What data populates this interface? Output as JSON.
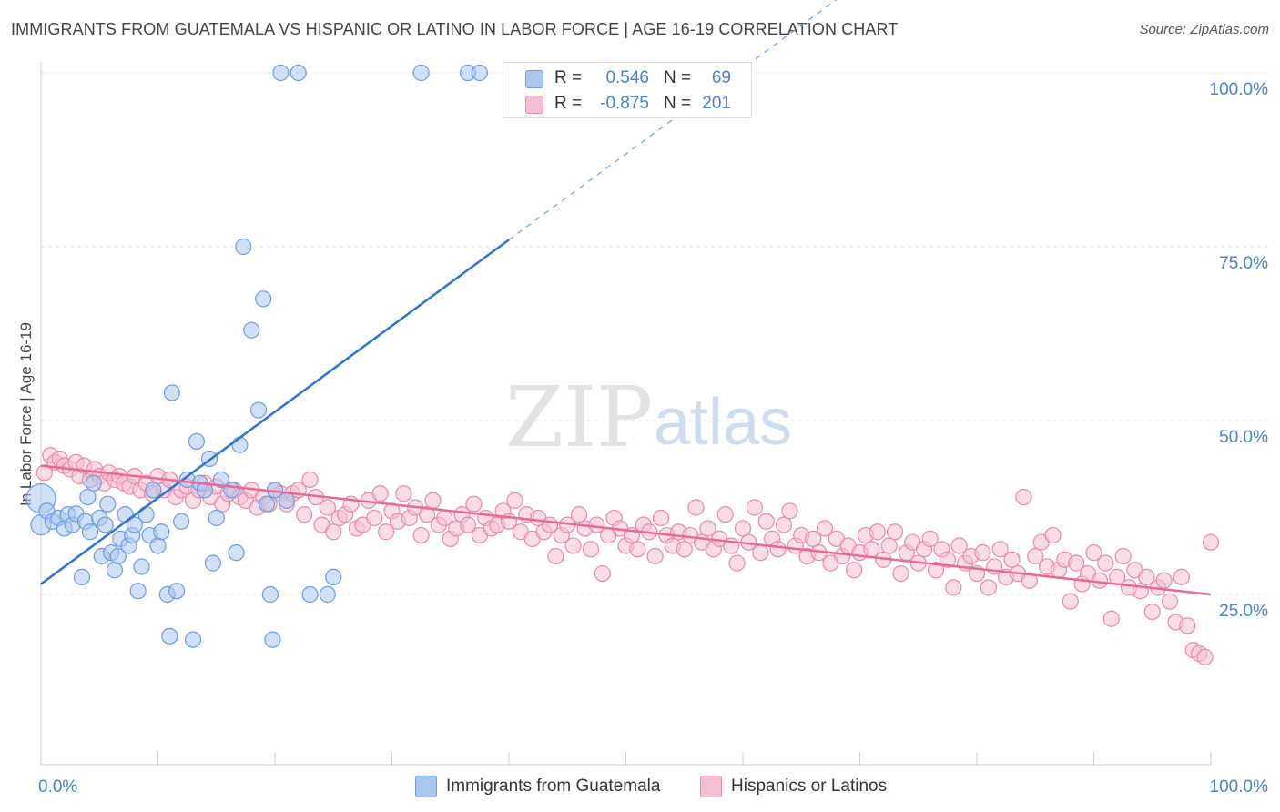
{
  "title": "IMMIGRANTS FROM GUATEMALA VS HISPANIC OR LATINO IN LABOR FORCE | AGE 16-19 CORRELATION CHART",
  "source": "Source: ZipAtlas.com",
  "watermark": {
    "zip": "ZIP",
    "atlas": "atlas"
  },
  "stats": [
    {
      "r_label": "R =",
      "r_value": "0.546",
      "n_label": "N =",
      "n_value": "69",
      "color": "#a9c6ee",
      "border": "#6b9be0"
    },
    {
      "r_label": "R =",
      "r_value": "-0.875",
      "n_label": "N =",
      "n_value": "201",
      "color": "#f6bfd1",
      "border": "#e889a9"
    }
  ],
  "legend": [
    {
      "label": "Immigrants from Guatemala",
      "color": "#a9c6ee",
      "border": "#6b9be0"
    },
    {
      "label": "Hispanics or Latinos",
      "color": "#f6bfd1",
      "border": "#e889a9"
    }
  ],
  "chart_data": {
    "type": "scatter",
    "title": "IMMIGRANTS FROM GUATEMALA VS HISPANIC OR LATINO IN LABOR FORCE | AGE 16-19 CORRELATION CHART",
    "xlabel": "",
    "ylabel": "In Labor Force | Age 16-19",
    "xlim": [
      0,
      100
    ],
    "ylim": [
      0,
      105
    ],
    "x_tick_labels": [
      "0.0%",
      "100.0%"
    ],
    "y_ticks": [
      25,
      50,
      75,
      100
    ],
    "y_tick_labels": [
      "25.0%",
      "50.0%",
      "75.0%",
      "100.0%"
    ],
    "grid": true,
    "legend_position": "bottom",
    "series": [
      {
        "name": "Immigrants from Guatemala",
        "color": "#6b9be0",
        "fill": "#a9c6ee",
        "trend": {
          "x": [
            0,
            40
          ],
          "y": [
            26.5,
            76
          ],
          "dashed_to": [
            70,
            113
          ]
        },
        "points": [
          [
            0,
            38.8
          ],
          [
            0,
            35.0
          ],
          [
            0.5,
            37.0
          ],
          [
            1.0,
            35.5
          ],
          [
            1.5,
            36.0
          ],
          [
            2.0,
            34.5
          ],
          [
            2.3,
            36.5
          ],
          [
            2.7,
            35.0
          ],
          [
            3.0,
            36.6
          ],
          [
            3.5,
            27.5
          ],
          [
            3.8,
            35.5
          ],
          [
            4.0,
            39.0
          ],
          [
            4.2,
            34.0
          ],
          [
            4.5,
            41.0
          ],
          [
            5.0,
            36.0
          ],
          [
            5.2,
            30.5
          ],
          [
            5.5,
            35.0
          ],
          [
            5.7,
            38.0
          ],
          [
            6.0,
            31.0
          ],
          [
            6.3,
            28.5
          ],
          [
            6.6,
            30.5
          ],
          [
            6.8,
            33.0
          ],
          [
            7.2,
            36.5
          ],
          [
            7.5,
            32.0
          ],
          [
            7.8,
            33.5
          ],
          [
            8.0,
            35.0
          ],
          [
            8.3,
            25.5
          ],
          [
            8.6,
            29.0
          ],
          [
            9.0,
            36.5
          ],
          [
            9.3,
            33.5
          ],
          [
            9.6,
            40.0
          ],
          [
            10.0,
            32.0
          ],
          [
            10.3,
            34.0
          ],
          [
            10.8,
            25.0
          ],
          [
            11.0,
            19.0
          ],
          [
            11.2,
            54.0
          ],
          [
            11.6,
            25.5
          ],
          [
            12.0,
            35.5
          ],
          [
            12.5,
            41.5
          ],
          [
            13.0,
            18.5
          ],
          [
            13.3,
            47.0
          ],
          [
            13.6,
            41.0
          ],
          [
            14.0,
            40.0
          ],
          [
            14.4,
            44.5
          ],
          [
            14.7,
            29.5
          ],
          [
            15.0,
            36.0
          ],
          [
            15.4,
            41.5
          ],
          [
            16.3,
            40.0
          ],
          [
            16.7,
            31.0
          ],
          [
            17.0,
            46.5
          ],
          [
            17.3,
            75.0
          ],
          [
            18.0,
            63.0
          ],
          [
            18.6,
            51.5
          ],
          [
            19.0,
            67.5
          ],
          [
            19.3,
            38.0
          ],
          [
            19.6,
            25.0
          ],
          [
            19.8,
            18.5
          ],
          [
            20.0,
            40.0
          ],
          [
            20.5,
            100.0
          ],
          [
            21.0,
            38.5
          ],
          [
            22.0,
            100.0
          ],
          [
            23.0,
            25.0
          ],
          [
            24.5,
            25.0
          ],
          [
            25.0,
            27.5
          ],
          [
            32.5,
            100.0
          ],
          [
            36.5,
            100.0
          ],
          [
            37.5,
            100.0
          ]
        ]
      },
      {
        "name": "Hispanics or Latinos",
        "color": "#e889a9",
        "fill": "#f6bfd1",
        "trend": {
          "x": [
            0,
            100
          ],
          "y": [
            43.5,
            25.0
          ]
        },
        "points": [
          [
            0.3,
            42.5
          ],
          [
            0.8,
            45.0
          ],
          [
            1.2,
            44.0
          ],
          [
            1.6,
            44.5
          ],
          [
            2.0,
            43.5
          ],
          [
            2.5,
            43.0
          ],
          [
            3.0,
            44.0
          ],
          [
            3.3,
            42.0
          ],
          [
            3.7,
            43.5
          ],
          [
            4.2,
            41.5
          ],
          [
            4.6,
            43.0
          ],
          [
            5.0,
            42.0
          ],
          [
            5.4,
            41.0
          ],
          [
            5.8,
            42.5
          ],
          [
            6.3,
            41.5
          ],
          [
            6.7,
            42.0
          ],
          [
            7.1,
            41.0
          ],
          [
            7.6,
            40.5
          ],
          [
            8.0,
            42.0
          ],
          [
            8.5,
            40.0
          ],
          [
            9.0,
            41.0
          ],
          [
            9.5,
            39.5
          ],
          [
            10.0,
            42.0
          ],
          [
            10.5,
            40.0
          ],
          [
            11.0,
            41.5
          ],
          [
            11.5,
            39.0
          ],
          [
            12.0,
            40.0
          ],
          [
            12.5,
            40.5
          ],
          [
            13.0,
            38.5
          ],
          [
            13.5,
            40.0
          ],
          [
            14.0,
            41.0
          ],
          [
            14.5,
            39.0
          ],
          [
            15.0,
            40.5
          ],
          [
            15.5,
            38.0
          ],
          [
            16.0,
            39.5
          ],
          [
            16.5,
            40.0
          ],
          [
            17.0,
            39.0
          ],
          [
            17.5,
            38.5
          ],
          [
            18.0,
            40.0
          ],
          [
            18.5,
            37.5
          ],
          [
            19.0,
            39.0
          ],
          [
            19.5,
            38.0
          ],
          [
            20.0,
            40.0
          ],
          [
            20.5,
            39.5
          ],
          [
            21.0,
            38.0
          ],
          [
            21.5,
            39.5
          ],
          [
            22.0,
            40.0
          ],
          [
            22.5,
            36.5
          ],
          [
            23.0,
            41.5
          ],
          [
            23.5,
            39.0
          ],
          [
            24.0,
            35.0
          ],
          [
            24.5,
            37.5
          ],
          [
            25.0,
            34.0
          ],
          [
            25.5,
            36.0
          ],
          [
            26.0,
            36.5
          ],
          [
            26.5,
            38.0
          ],
          [
            27.0,
            34.5
          ],
          [
            27.5,
            35.0
          ],
          [
            28.0,
            38.5
          ],
          [
            28.5,
            36.0
          ],
          [
            29.0,
            39.5
          ],
          [
            29.5,
            34.0
          ],
          [
            30.0,
            37.0
          ],
          [
            30.5,
            35.5
          ],
          [
            31.0,
            39.5
          ],
          [
            31.5,
            36.0
          ],
          [
            32.0,
            37.5
          ],
          [
            32.5,
            33.5
          ],
          [
            33.0,
            36.5
          ],
          [
            33.5,
            38.5
          ],
          [
            34.0,
            35.0
          ],
          [
            34.5,
            36.0
          ],
          [
            35.0,
            33.0
          ],
          [
            35.5,
            34.5
          ],
          [
            36.0,
            36.5
          ],
          [
            36.5,
            35.0
          ],
          [
            37.0,
            38.0
          ],
          [
            37.5,
            33.5
          ],
          [
            38.0,
            36.0
          ],
          [
            38.5,
            34.5
          ],
          [
            39.0,
            35.0
          ],
          [
            39.5,
            37.0
          ],
          [
            40.0,
            35.5
          ],
          [
            40.5,
            38.5
          ],
          [
            41.0,
            34.0
          ],
          [
            41.5,
            36.5
          ],
          [
            42.0,
            33.0
          ],
          [
            42.5,
            36.0
          ],
          [
            43.0,
            34.0
          ],
          [
            43.5,
            35.0
          ],
          [
            44.0,
            30.5
          ],
          [
            44.5,
            33.5
          ],
          [
            45.0,
            35.0
          ],
          [
            45.5,
            32.0
          ],
          [
            46.0,
            36.5
          ],
          [
            46.5,
            34.5
          ],
          [
            47.0,
            31.5
          ],
          [
            47.5,
            35.0
          ],
          [
            48.0,
            28.0
          ],
          [
            48.5,
            33.5
          ],
          [
            49.0,
            36.0
          ],
          [
            49.5,
            34.5
          ],
          [
            50.0,
            32.0
          ],
          [
            50.5,
            33.5
          ],
          [
            51.0,
            31.5
          ],
          [
            51.5,
            35.0
          ],
          [
            52.0,
            34.0
          ],
          [
            52.5,
            30.5
          ],
          [
            53.0,
            36.0
          ],
          [
            53.5,
            33.5
          ],
          [
            54.0,
            32.0
          ],
          [
            54.5,
            34.0
          ],
          [
            55.0,
            31.5
          ],
          [
            55.5,
            33.5
          ],
          [
            56.0,
            37.5
          ],
          [
            56.5,
            32.5
          ],
          [
            57.0,
            34.5
          ],
          [
            57.5,
            31.5
          ],
          [
            58.0,
            33.0
          ],
          [
            58.5,
            36.5
          ],
          [
            59.0,
            32.0
          ],
          [
            59.5,
            29.5
          ],
          [
            60.0,
            34.5
          ],
          [
            60.5,
            32.5
          ],
          [
            61.0,
            37.5
          ],
          [
            61.5,
            31.0
          ],
          [
            62.0,
            35.5
          ],
          [
            62.5,
            33.0
          ],
          [
            63.0,
            31.5
          ],
          [
            63.5,
            35.0
          ],
          [
            64.0,
            37.0
          ],
          [
            64.5,
            32.0
          ],
          [
            65.0,
            33.5
          ],
          [
            65.5,
            30.5
          ],
          [
            66.0,
            33.0
          ],
          [
            66.5,
            31.0
          ],
          [
            67.0,
            34.5
          ],
          [
            67.5,
            29.5
          ],
          [
            68.0,
            33.0
          ],
          [
            68.5,
            30.5
          ],
          [
            69.0,
            32.0
          ],
          [
            69.5,
            28.5
          ],
          [
            70.0,
            31.0
          ],
          [
            70.5,
            33.5
          ],
          [
            71.0,
            31.5
          ],
          [
            71.5,
            34.0
          ],
          [
            72.0,
            30.0
          ],
          [
            72.5,
            32.0
          ],
          [
            73.0,
            34.0
          ],
          [
            73.5,
            28.0
          ],
          [
            74.0,
            31.0
          ],
          [
            74.5,
            32.5
          ],
          [
            75.0,
            29.5
          ],
          [
            75.5,
            31.5
          ],
          [
            76.0,
            33.0
          ],
          [
            76.5,
            28.5
          ],
          [
            77.0,
            31.5
          ],
          [
            77.5,
            30.0
          ],
          [
            78.0,
            26.0
          ],
          [
            78.5,
            32.0
          ],
          [
            79.0,
            29.5
          ],
          [
            79.5,
            30.5
          ],
          [
            80.0,
            28.0
          ],
          [
            80.5,
            31.0
          ],
          [
            81.0,
            26.0
          ],
          [
            81.5,
            29.0
          ],
          [
            82.0,
            31.5
          ],
          [
            82.5,
            27.5
          ],
          [
            83.0,
            30.0
          ],
          [
            83.5,
            28.0
          ],
          [
            84.0,
            39.0
          ],
          [
            84.5,
            27.0
          ],
          [
            85.0,
            30.5
          ],
          [
            85.5,
            32.5
          ],
          [
            86.0,
            29.0
          ],
          [
            86.5,
            33.5
          ],
          [
            87.0,
            28.5
          ],
          [
            87.5,
            30.0
          ],
          [
            88.0,
            24.0
          ],
          [
            88.5,
            29.5
          ],
          [
            89.0,
            26.5
          ],
          [
            89.5,
            28.0
          ],
          [
            90.0,
            31.0
          ],
          [
            90.5,
            27.0
          ],
          [
            91.0,
            29.5
          ],
          [
            91.5,
            21.5
          ],
          [
            92.0,
            27.5
          ],
          [
            92.5,
            30.5
          ],
          [
            93.0,
            26.0
          ],
          [
            93.5,
            28.5
          ],
          [
            94.0,
            25.5
          ],
          [
            94.5,
            27.5
          ],
          [
            95.0,
            22.5
          ],
          [
            95.5,
            26.0
          ],
          [
            96.0,
            27.0
          ],
          [
            96.5,
            24.0
          ],
          [
            97.0,
            21.0
          ],
          [
            97.5,
            27.5
          ],
          [
            98.0,
            20.5
          ],
          [
            98.5,
            17.0
          ],
          [
            99.0,
            16.5
          ],
          [
            99.5,
            16.0
          ],
          [
            100.0,
            32.5
          ]
        ]
      }
    ]
  }
}
